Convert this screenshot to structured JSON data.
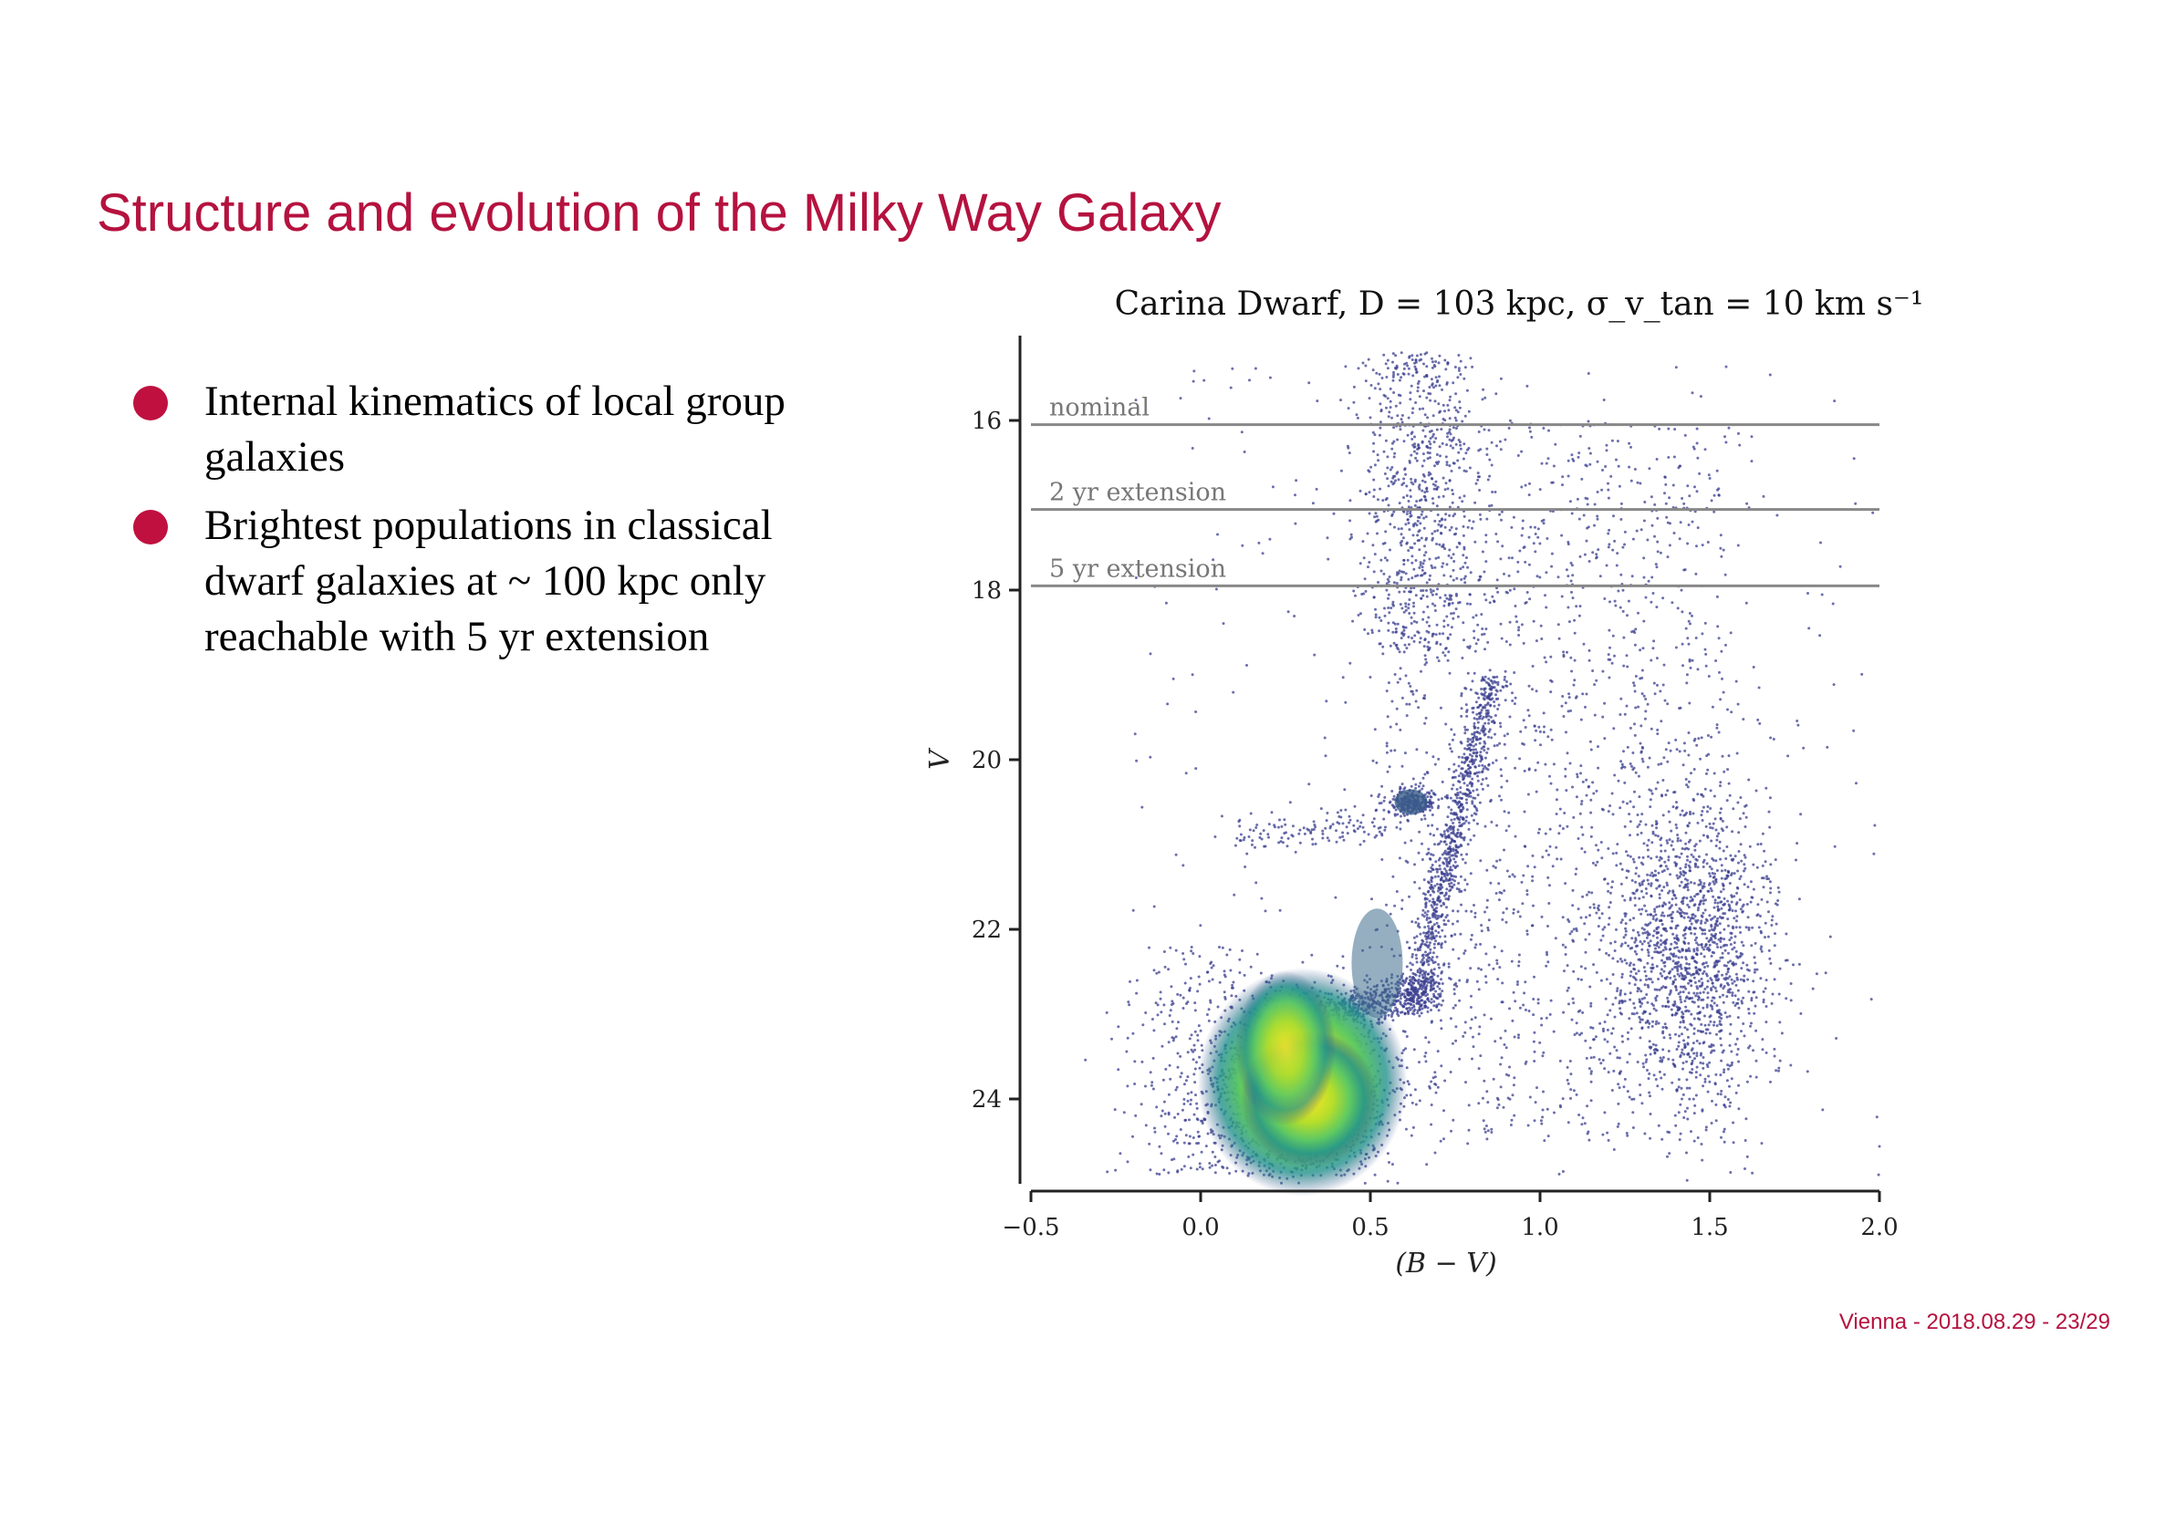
{
  "slide": {
    "title": "Structure and evolution of the Milky Way Galaxy",
    "bullets": [
      "Internal kinematics of local group galaxies",
      "Brightest populations in classical dwarf galaxies at ~ 100 kpc only reachable with 5 yr extension"
    ],
    "footer": "Vienna - 2018.08.29 - 23/29",
    "accent_color": "#b5123f",
    "bullet_color": "#c0103f"
  },
  "chart_data": {
    "type": "scatter",
    "title": "Carina Dwarf, D = 103 kpc, σ_v_tan = 10 km s⁻¹",
    "xlabel": "(B − V)",
    "ylabel": "V",
    "xlim": [
      -0.5,
      2.0
    ],
    "ylim": [
      25.0,
      15.0
    ],
    "y_inverted": true,
    "xticks": [
      -0.5,
      0.0,
      0.5,
      1.0,
      1.5,
      2.0
    ],
    "xtick_labels": [
      "−0.5",
      "0.0",
      "0.5",
      "1.0",
      "1.5",
      "2.0"
    ],
    "yticks": [
      16,
      18,
      20,
      22,
      24
    ],
    "ytick_labels": [
      "16",
      "18",
      "20",
      "22",
      "24"
    ],
    "grid": false,
    "colormap": "viridis (point density)",
    "point_color": "#3b3f8f",
    "reference_lines": [
      {
        "label": "nominal",
        "y": 16.05,
        "color": "#888888"
      },
      {
        "label": "2 yr extension",
        "y": 17.05,
        "color": "#888888"
      },
      {
        "label": "5 yr extension",
        "y": 17.95,
        "color": "#888888"
      }
    ],
    "density_peak": {
      "x": 0.32,
      "y": 24.0
    },
    "populations": [
      {
        "name": "main-sequence turnoff",
        "x": 0.32,
        "y": 24.0,
        "relative_density": 1.0
      },
      {
        "name": "red giant branch",
        "x_range": [
          0.45,
          0.9
        ],
        "y_range": [
          19.0,
          23.0
        ]
      },
      {
        "name": "red clump",
        "x": 0.62,
        "y": 20.5
      },
      {
        "name": "foreground disc stars",
        "x": 1.45,
        "y": 22.5
      },
      {
        "name": "foreground halo stars",
        "x": 0.65,
        "y": 17.0
      }
    ]
  }
}
